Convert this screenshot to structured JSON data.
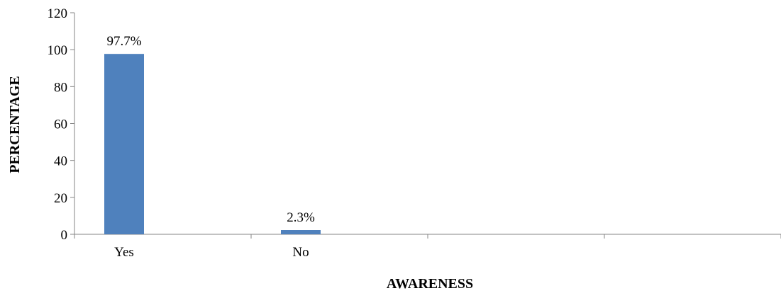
{
  "chart_data": {
    "type": "bar",
    "title": "",
    "xlabel": "AWARENESS",
    "ylabel": "PERCENTAGE",
    "categories": [
      "Yes",
      "No",
      "",
      ""
    ],
    "series": [
      {
        "values": [
          97.7,
          2.3,
          null,
          null
        ]
      }
    ],
    "data_labels": [
      "97.7%",
      "2.3%",
      "",
      ""
    ],
    "ylim": [
      0,
      120
    ],
    "yticks": [
      0,
      20,
      40,
      60,
      80,
      100,
      120
    ],
    "grid": false,
    "legend": "none",
    "bar_color": "#4F81BD",
    "axis_color": "#868686"
  }
}
